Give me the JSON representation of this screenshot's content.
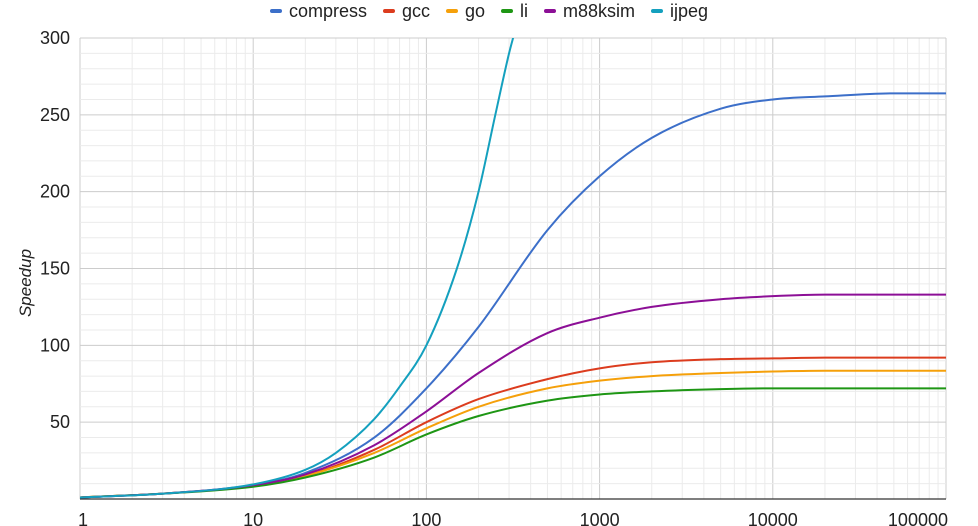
{
  "chart_data": {
    "type": "line",
    "ylabel": "Speedup",
    "x_scale": "log",
    "xlim": [
      1,
      100000
    ],
    "ylim": [
      0,
      300
    ],
    "x_ticks": [
      "1",
      "10",
      "100",
      "1000",
      "10000",
      "100000"
    ],
    "y_ticks": [
      "50",
      "100",
      "150",
      "200",
      "250",
      "300"
    ],
    "legend_position": "top-center",
    "grid": true,
    "series": [
      {
        "name": "compress",
        "color": "#3c6fc9",
        "x": [
          1,
          3,
          10,
          20,
          50,
          100,
          200,
          500,
          1000,
          2000,
          5000,
          10000,
          20000,
          50000,
          100000
        ],
        "y": [
          1,
          3.5,
          9,
          17,
          40,
          72,
          112,
          175,
          210,
          235,
          254,
          260,
          262,
          264,
          264
        ]
      },
      {
        "name": "gcc",
        "color": "#dc3c1e",
        "x": [
          1,
          3,
          10,
          20,
          50,
          100,
          200,
          500,
          1000,
          2000,
          5000,
          10000,
          20000,
          50000,
          100000
        ],
        "y": [
          1,
          3.5,
          8.5,
          15,
          32,
          50,
          65,
          78,
          85,
          89,
          91,
          91.5,
          92,
          92,
          92
        ]
      },
      {
        "name": "go",
        "color": "#f5a00a",
        "x": [
          1,
          3,
          10,
          20,
          50,
          100,
          200,
          500,
          1000,
          2000,
          5000,
          10000,
          20000,
          50000,
          100000
        ],
        "y": [
          1,
          3.5,
          8.5,
          15,
          30,
          46,
          60,
          72,
          77,
          80,
          82,
          83,
          83.5,
          83.5,
          83.5
        ]
      },
      {
        "name": "li",
        "color": "#1e9614",
        "x": [
          1,
          3,
          10,
          20,
          50,
          100,
          200,
          500,
          1000,
          2000,
          5000,
          10000,
          20000,
          50000,
          100000
        ],
        "y": [
          1,
          3.5,
          8,
          14,
          27,
          42,
          54,
          64,
          68,
          70,
          71.5,
          72,
          72,
          72,
          72
        ]
      },
      {
        "name": "m88ksim",
        "color": "#8c0f96",
        "x": [
          1,
          3,
          10,
          20,
          50,
          100,
          200,
          500,
          1000,
          2000,
          5000,
          10000,
          20000,
          50000,
          100000
        ],
        "y": [
          1,
          3.5,
          9,
          16,
          35,
          57,
          82,
          108,
          118,
          125,
          130,
          132,
          133,
          133,
          133
        ]
      },
      {
        "name": "ijpeg",
        "color": "#14a0be",
        "x": [
          1,
          3,
          10,
          20,
          30,
          50,
          70,
          100,
          150,
          200,
          250,
          300,
          320
        ],
        "y": [
          1,
          3.5,
          9.5,
          19,
          30,
          52,
          73,
          100,
          150,
          200,
          250,
          290,
          302
        ]
      }
    ]
  }
}
